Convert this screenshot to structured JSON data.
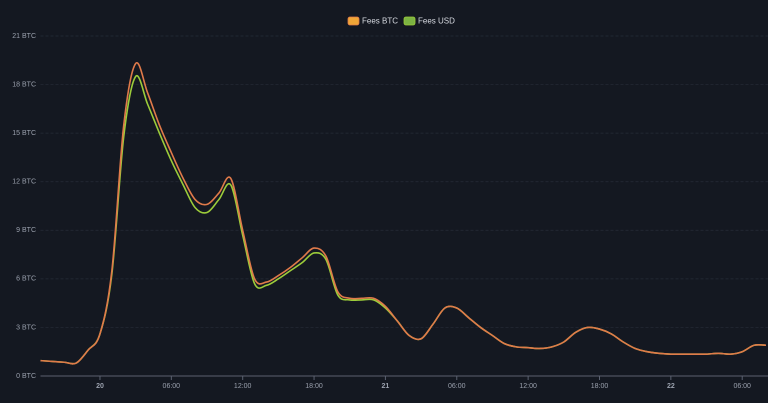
{
  "chart_data": {
    "type": "line",
    "categories": [
      null,
      null,
      null,
      null,
      null,
      "20",
      null,
      null,
      null,
      null,
      null,
      "06:00",
      null,
      null,
      null,
      null,
      null,
      "12:00",
      null,
      null,
      null,
      null,
      null,
      "18:00",
      null,
      null,
      null,
      null,
      null,
      "21",
      null,
      null,
      null,
      null,
      null,
      "06:00",
      null,
      null,
      null,
      null,
      null,
      "12:00",
      null,
      null,
      null,
      null,
      null,
      "18:00",
      null,
      null,
      null,
      null,
      null,
      "22",
      null,
      null,
      null,
      null,
      null,
      "06:00",
      null,
      null
    ],
    "series": [
      {
        "name": "Fees BTC",
        "color": "#f0a637",
        "line_color": "#e07a4a",
        "values": [
          0.95,
          0.9,
          0.85,
          0.8,
          1.6,
          2.6,
          6.5,
          15.5,
          19.3,
          17.5,
          15.5,
          13.8,
          12.2,
          10.9,
          10.6,
          11.3,
          12.2,
          9.0,
          6.0,
          5.8,
          6.2,
          6.7,
          7.3,
          7.9,
          7.4,
          5.2,
          4.8,
          4.8,
          4.8,
          4.3,
          3.4,
          2.5,
          2.3,
          3.2,
          4.2,
          4.2,
          3.6,
          3.0,
          2.5,
          2.0,
          1.8,
          1.75,
          1.7,
          1.8,
          2.1,
          2.7,
          3.0,
          2.9,
          2.6,
          2.1,
          1.7,
          1.5,
          1.4,
          1.35,
          1.35,
          1.35,
          1.35,
          1.4,
          1.35,
          1.5,
          1.9,
          1.9
        ]
      },
      {
        "name": "Fees USD",
        "color": "#7cb342",
        "line_color": "#9ccc3a",
        "values": [
          0.95,
          0.9,
          0.85,
          0.8,
          1.6,
          2.6,
          6.3,
          14.8,
          18.5,
          16.8,
          15.0,
          13.3,
          11.8,
          10.4,
          10.1,
          10.9,
          11.8,
          8.7,
          5.7,
          5.6,
          6.0,
          6.5,
          7.0,
          7.6,
          7.2,
          5.0,
          4.7,
          4.7,
          4.7,
          4.2,
          3.4,
          2.5,
          2.3,
          3.2,
          4.2,
          4.2,
          3.6,
          3.0,
          2.5,
          2.0,
          1.8,
          1.75,
          1.7,
          1.8,
          2.1,
          2.7,
          3.0,
          2.9,
          2.6,
          2.1,
          1.7,
          1.5,
          1.4,
          1.35,
          1.35,
          1.35,
          1.35,
          1.4,
          1.35,
          1.5,
          1.9,
          1.9
        ]
      }
    ],
    "ylim": [
      0,
      21
    ],
    "yticks": [
      {
        "value": 0,
        "label": "0 BTC"
      },
      {
        "value": 3,
        "label": "3 BTC"
      },
      {
        "value": 6,
        "label": "6 BTC"
      },
      {
        "value": 9,
        "label": "9 BTC"
      },
      {
        "value": 12,
        "label": "12 BTC"
      },
      {
        "value": 15,
        "label": "15 BTC"
      },
      {
        "value": 18,
        "label": "18 BTC"
      },
      {
        "value": 21,
        "label": "21 BTC"
      }
    ],
    "grid": true,
    "legend": "top"
  }
}
